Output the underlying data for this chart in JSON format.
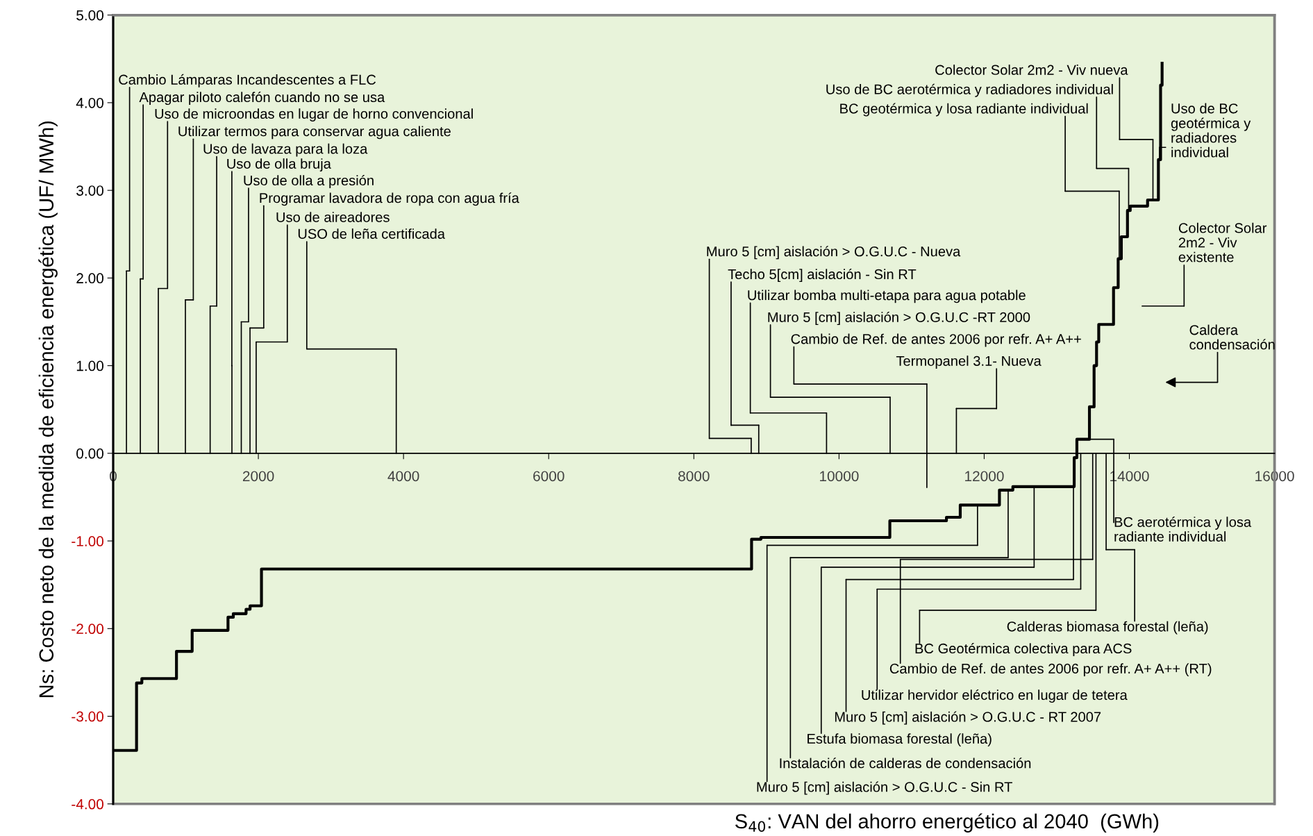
{
  "chart_data": {
    "type": "step",
    "xlabel": "S$_{40}$: VAN del ahorro energético al 2040  (GWh)",
    "ylabel": "Ns: Costo neto de la medida de eficiencia energética (UF/ MWh)",
    "series": [
      {
        "color": "#000000",
        "x": [
          0,
          322,
          395,
          872,
          1088,
          1582,
          1655,
          1831,
          1886,
          2043,
          8795,
          8924,
          10700,
          11480,
          11670,
          12210,
          12395,
          13240,
          13277,
          13450,
          13514,
          13548,
          13578,
          13782,
          13846,
          13889,
          13974,
          14012,
          14251,
          14400,
          14430,
          14451
        ],
        "values": [
          -3.39,
          -2.62,
          -2.57,
          -2.26,
          -2.02,
          -1.87,
          -1.83,
          -1.78,
          -1.74,
          -1.32,
          -0.98,
          -0.96,
          -0.77,
          -0.73,
          -0.59,
          -0.42,
          -0.38,
          -0.05,
          0.16,
          0.53,
          1.0,
          1.27,
          1.47,
          1.89,
          2.22,
          2.47,
          2.77,
          2.82,
          2.89,
          3.35,
          4.2,
          4.45
        ]
      }
    ],
    "xlim": [
      0,
      16000
    ],
    "xticks": [
      0,
      2000,
      4000,
      6000,
      8000,
      10000,
      12000,
      14000,
      16000
    ],
    "ylim": [
      -4,
      5
    ],
    "yticks": [
      {
        "value": -4,
        "label": "-4.00"
      },
      {
        "value": -3,
        "label": "-3.00"
      },
      {
        "value": -2,
        "label": "-2.00"
      },
      {
        "value": -1,
        "label": "-1.00"
      },
      {
        "value": 0,
        "label": "0.00"
      },
      {
        "value": 1,
        "label": "1.00"
      },
      {
        "value": 2,
        "label": "2.00"
      },
      {
        "value": 3,
        "label": "3.00"
      },
      {
        "value": 4,
        "label": "4.00"
      },
      {
        "value": 5,
        "label": "5.00"
      }
    ],
    "annotations": [
      "Cambio Lámparas Incandescentes a FLC",
      "Apagar piloto calefón cuando no se usa",
      "Uso de microondas en lugar de horno convencional",
      "Utilizar termos para conservar agua caliente",
      "Uso de lavaza para la loza",
      "Uso de olla bruja",
      "Uso de olla a presión",
      "Programar lavadora de ropa con agua fría",
      "Uso de aireadores",
      "USO de leña certificada",
      "Muro 5 [cm] aislación > O.G.U.C - Nueva",
      "Techo 5[cm] aislación - Sin RT",
      "Utilizar bomba multi-etapa para agua potable",
      "Muro 5 [cm] aislación > O.G.U.C -RT 2000",
      "Cambio de Ref. de antes 2006 por refr. A+ A++",
      "Termopanel 3.1- Nueva",
      "BC aerotérmica y losa\nradiante individual",
      "Calderas biomasa forestal (leña)",
      "BC Geotérmica colectiva para ACS",
      "Cambio de Ref. de antes 2006 por refr. A+ A++ (RT)",
      "Utilizar hervidor eléctrico en lugar de tetera",
      "Muro 5 [cm] aislación > O.G.U.C - RT 2007",
      "Estufa biomasa forestal (leña)",
      "Instalación de calderas de condensación",
      "Muro 5 [cm] aislación > O.G.U.C - Sin RT",
      "Colector Solar 2m2 - Viv nueva",
      "Uso de BC aerotérmica y radiadores individual",
      "BC geotérmica y losa radiante individual",
      "Uso de BC\ngeotérmica y\nradiadores\nindividual",
      "Colector Solar\n2m2 - Viv\nexistente",
      "Caldera\ncondensación"
    ]
  }
}
